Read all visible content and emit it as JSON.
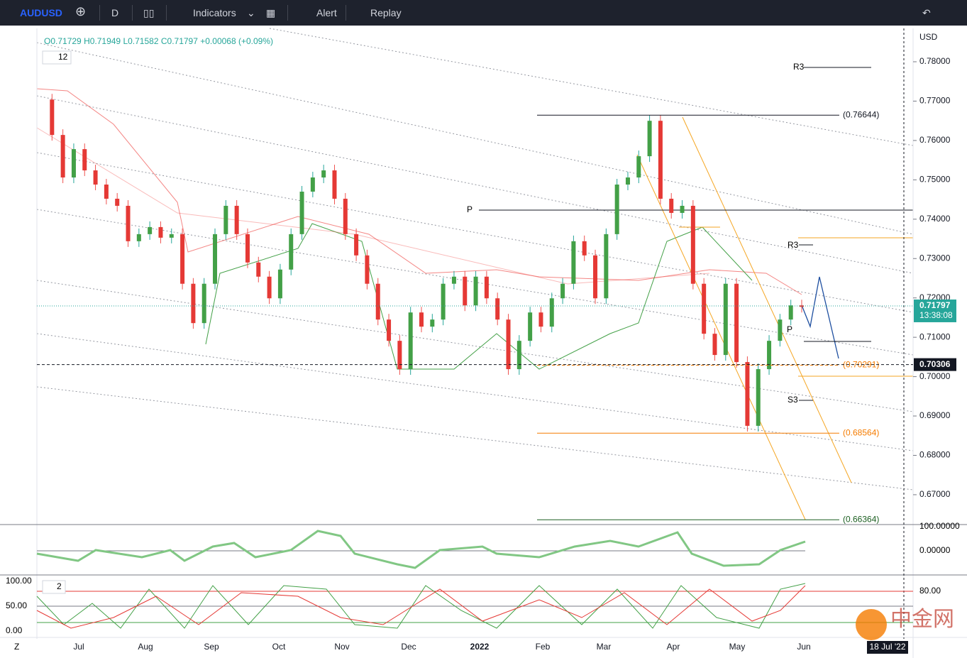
{
  "toolbar": {
    "symbol": "AUDUSD",
    "interval": "D",
    "indicators": "Indicators",
    "alert": "Alert",
    "replay": "Replay"
  },
  "legend": {
    "open": "O0.71729",
    "high": "H0.71949",
    "low": "L0.71582",
    "close": "C0.71797",
    "change": "+0.00068 (+0.09%)",
    "indicator_count": "12"
  },
  "price_axis": {
    "currency": "USD",
    "ticks": [
      {
        "value": 0.78,
        "label": "0.78000"
      },
      {
        "value": 0.77,
        "label": "0.77000"
      },
      {
        "value": 0.76,
        "label": "0.76000"
      },
      {
        "value": 0.75,
        "label": "0.75000"
      },
      {
        "value": 0.74,
        "label": "0.74000"
      },
      {
        "value": 0.73,
        "label": "0.73000"
      },
      {
        "value": 0.72,
        "label": "0.72000"
      },
      {
        "value": 0.71,
        "label": "0.71000"
      },
      {
        "value": 0.7,
        "label": "0.70000"
      },
      {
        "value": 0.69,
        "label": "0.69000"
      },
      {
        "value": 0.68,
        "label": "0.68000"
      },
      {
        "value": 0.67,
        "label": "0.67000"
      }
    ],
    "last_price": {
      "value": 0.71797,
      "label": "0.71797"
    },
    "countdown": "13:38:08",
    "crosshair_price": {
      "value": 0.70306,
      "label": "0.70306"
    }
  },
  "levels": [
    {
      "value": 0.76644,
      "label": "(0.76644)",
      "color": "#131722"
    },
    {
      "value": 0.70291,
      "label": "(0.70291)",
      "color": "#f57c00"
    },
    {
      "value": 0.68564,
      "label": "(0.68564)",
      "color": "#f57c00"
    },
    {
      "value": 0.66364,
      "label": "(0.66364)",
      "color": "#1b5e20"
    }
  ],
  "pivots": {
    "r3_top": "R3",
    "r3": "R3",
    "p": "P",
    "s3": "S3",
    "p_small": "P"
  },
  "time_axis": {
    "labels": [
      "Jul",
      "Aug",
      "Sep",
      "Oct",
      "Nov",
      "Dec",
      "2022",
      "Feb",
      "Mar",
      "Apr",
      "May",
      "Jun"
    ],
    "crosshair_date": "18 Jul '22",
    "zoom": "Z"
  },
  "oscillator1": {
    "ticks": [
      "100.00000",
      "0.00000"
    ]
  },
  "oscillator2": {
    "count": "2",
    "left_ticks": [
      "100.00",
      "50.00",
      "0.00"
    ],
    "right_ticks": [
      "80.00"
    ]
  },
  "watermark": "中金网",
  "price_path": [
    0.7704,
    0.7614,
    0.7506,
    0.7578,
    0.7524,
    0.7488,
    0.7452,
    0.7434,
    0.7344,
    0.7362,
    0.738,
    0.7353,
    0.7362,
    0.7236,
    0.7136,
    0.7236,
    0.7362,
    0.7434,
    0.7362,
    0.729,
    0.7254,
    0.7199,
    0.7272,
    0.7362,
    0.747,
    0.7506,
    0.7524,
    0.7452,
    0.7362,
    0.7308,
    0.7236,
    0.7145,
    0.7091,
    0.7019,
    0.7163,
    0.7127,
    0.7145,
    0.7236,
    0.7254,
    0.7181,
    0.7254,
    0.7199,
    0.7145,
    0.7019,
    0.7091,
    0.7163,
    0.7127,
    0.7199,
    0.7236,
    0.7344,
    0.7308,
    0.7199,
    0.7362,
    0.7488,
    0.7506,
    0.756,
    0.765,
    0.7452,
    0.7416,
    0.7434,
    0.7236,
    0.7109,
    0.7055,
    0.7236,
    0.7037,
    0.6875,
    0.7019,
    0.7091,
    0.7145,
    0.7181,
    0.718
  ]
}
